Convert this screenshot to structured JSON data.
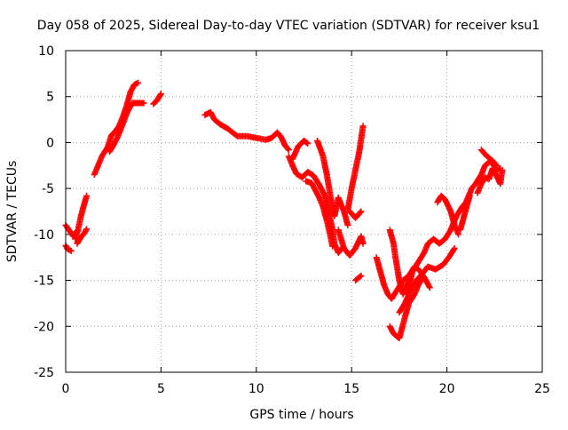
{
  "chart_data": {
    "type": "scatter",
    "title": "Day 058 of 2025, Sidereal Day-to-day VTEC variation (SDTVAR) for receiver ksu1",
    "xlabel": "GPS time / hours",
    "ylabel": "SDTVAR / TECUs",
    "xlim": [
      0,
      25
    ],
    "ylim": [
      -25,
      10
    ],
    "xticks": [
      0,
      5,
      10,
      15,
      20,
      25
    ],
    "yticks": [
      -25,
      -20,
      -15,
      -10,
      -5,
      0,
      5,
      10
    ],
    "grid": true,
    "marker": "plus",
    "color": "#ff0000",
    "series": [
      {
        "name": "ksu1",
        "tracks": [
          [
            [
              0.0,
              -11.2
            ],
            [
              0.1,
              -11.6
            ],
            [
              0.3,
              -11.8
            ]
          ],
          [
            [
              0.0,
              -9.0
            ],
            [
              0.2,
              -9.6
            ],
            [
              0.4,
              -10.2
            ],
            [
              0.6,
              -9.6
            ]
          ],
          [
            [
              0.5,
              -10.5
            ],
            [
              0.65,
              -9.5
            ],
            [
              0.8,
              -8.0
            ],
            [
              1.0,
              -6.5
            ],
            [
              1.1,
              -5.8
            ]
          ],
          [
            [
              0.6,
              -11.0
            ],
            [
              0.8,
              -10.3
            ],
            [
              1.0,
              -9.8
            ],
            [
              1.1,
              -9.4
            ]
          ],
          [
            [
              1.5,
              -3.5
            ],
            [
              1.7,
              -2.5
            ],
            [
              1.9,
              -1.5
            ],
            [
              2.2,
              -0.5
            ],
            [
              2.4,
              0.8
            ],
            [
              2.6,
              1.2
            ],
            [
              2.8,
              1.8
            ],
            [
              3.0,
              2.8
            ],
            [
              3.2,
              4.0
            ],
            [
              3.4,
              5.5
            ],
            [
              3.6,
              6.3
            ],
            [
              3.8,
              6.5
            ]
          ],
          [
            [
              2.3,
              -1.0
            ],
            [
              2.5,
              -0.3
            ],
            [
              2.7,
              0.5
            ],
            [
              2.9,
              1.5
            ],
            [
              3.1,
              2.6
            ],
            [
              3.3,
              3.6
            ],
            [
              3.5,
              4.3
            ],
            [
              3.8,
              4.3
            ],
            [
              4.1,
              4.3
            ]
          ],
          [
            [
              4.6,
              4.2
            ],
            [
              4.8,
              4.6
            ],
            [
              5.0,
              5.3
            ]
          ],
          [
            [
              7.3,
              3.0
            ],
            [
              7.6,
              3.3
            ],
            [
              7.8,
              2.5
            ],
            [
              8.1,
              2.0
            ],
            [
              8.5,
              1.5
            ],
            [
              9.0,
              0.7
            ],
            [
              9.5,
              0.7
            ],
            [
              10.0,
              0.5
            ],
            [
              10.5,
              0.3
            ],
            [
              10.8,
              0.5
            ],
            [
              11.1,
              1.1
            ],
            [
              11.3,
              0.6
            ],
            [
              11.5,
              -0.3
            ],
            [
              11.7,
              -0.8
            ]
          ],
          [
            [
              11.7,
              -1.5
            ],
            [
              11.9,
              -2.5
            ],
            [
              12.1,
              -3.4
            ],
            [
              12.4,
              -3.8
            ],
            [
              12.7,
              -3.2
            ],
            [
              13.0,
              -3.6
            ],
            [
              13.3,
              -4.6
            ],
            [
              13.6,
              -5.8
            ],
            [
              13.8,
              -7.5
            ],
            [
              14.0,
              -9.5
            ],
            [
              14.1,
              -11.0
            ],
            [
              14.3,
              -12.0
            ],
            [
              14.5,
              -11.5
            ]
          ],
          [
            [
              11.9,
              -1.8
            ],
            [
              12.2,
              -0.4
            ],
            [
              12.5,
              0.2
            ],
            [
              12.7,
              -0.1
            ]
          ],
          [
            [
              12.6,
              -4.2
            ],
            [
              12.9,
              -4.4
            ],
            [
              13.1,
              -5.2
            ],
            [
              13.3,
              -6.0
            ],
            [
              13.5,
              -7.0
            ],
            [
              13.7,
              -8.5
            ],
            [
              13.9,
              -10.3
            ],
            [
              14.0,
              -11.3
            ]
          ],
          [
            [
              13.2,
              0.2
            ],
            [
              13.5,
              -1.5
            ],
            [
              13.7,
              -3.5
            ],
            [
              13.9,
              -6.0
            ],
            [
              14.1,
              -8.0
            ],
            [
              14.3,
              -6.0
            ],
            [
              14.6,
              -7.5
            ],
            [
              14.8,
              -9.0
            ]
          ],
          [
            [
              14.3,
              -9.5
            ],
            [
              14.6,
              -11.5
            ],
            [
              14.9,
              -12.3
            ],
            [
              15.2,
              -11.5
            ],
            [
              15.5,
              -10.2
            ],
            [
              15.6,
              -11.0
            ]
          ],
          [
            [
              14.8,
              -7.3
            ],
            [
              15.0,
              -5.0
            ],
            [
              15.2,
              -3.0
            ],
            [
              15.4,
              -1.0
            ],
            [
              15.6,
              1.8
            ]
          ],
          [
            [
              14.9,
              -7.5
            ],
            [
              15.2,
              -8.2
            ],
            [
              15.5,
              -7.5
            ]
          ],
          [
            [
              15.2,
              -15.0
            ],
            [
              15.5,
              -14.5
            ]
          ],
          [
            [
              16.3,
              -12.5
            ],
            [
              16.5,
              -14.0
            ],
            [
              16.7,
              -15.5
            ],
            [
              16.9,
              -16.5
            ],
            [
              17.1,
              -17.0
            ],
            [
              17.4,
              -16.0
            ],
            [
              17.7,
              -15.0
            ],
            [
              18.0,
              -14.5
            ],
            [
              18.3,
              -13.5
            ],
            [
              18.6,
              -14.0
            ],
            [
              18.9,
              -15.0
            ],
            [
              19.1,
              -15.8
            ]
          ],
          [
            [
              17.0,
              -9.5
            ],
            [
              17.2,
              -11.0
            ],
            [
              17.3,
              -12.5
            ],
            [
              17.5,
              -15.0
            ],
            [
              17.7,
              -16.5
            ],
            [
              17.9,
              -15.5
            ],
            [
              18.1,
              -14.8
            ]
          ],
          [
            [
              17.0,
              -20.0
            ],
            [
              17.2,
              -20.8
            ],
            [
              17.5,
              -21.3
            ],
            [
              17.8,
              -19.0
            ],
            [
              18.0,
              -17.5
            ],
            [
              18.3,
              -16.5
            ],
            [
              18.5,
              -15.5
            ],
            [
              18.7,
              -14.8
            ]
          ],
          [
            [
              17.9,
              -16.5
            ],
            [
              18.2,
              -14.0
            ],
            [
              18.5,
              -13.0
            ],
            [
              18.8,
              -12.0
            ],
            [
              19.0,
              -11.0
            ],
            [
              19.3,
              -10.5
            ],
            [
              19.6,
              -11.0
            ],
            [
              19.9,
              -10.5
            ],
            [
              20.2,
              -9.5
            ],
            [
              20.5,
              -8.0
            ],
            [
              20.8,
              -7.0
            ],
            [
              21.0,
              -6.5
            ],
            [
              21.3,
              -5.0
            ],
            [
              21.5,
              -4.5
            ],
            [
              21.8,
              -3.5
            ],
            [
              22.0,
              -2.5
            ],
            [
              22.3,
              -2.0
            ],
            [
              22.6,
              -3.0
            ],
            [
              22.8,
              -2.8
            ]
          ],
          [
            [
              17.5,
              -18.5
            ],
            [
              17.8,
              -17.5
            ],
            [
              18.1,
              -16.0
            ],
            [
              18.4,
              -15.0
            ],
            [
              18.7,
              -14.3
            ],
            [
              19.0,
              -13.5
            ],
            [
              19.4,
              -13.8
            ],
            [
              19.8,
              -13.3
            ],
            [
              20.1,
              -12.5
            ],
            [
              20.4,
              -11.5
            ]
          ],
          [
            [
              19.5,
              -6.5
            ],
            [
              19.7,
              -5.8
            ],
            [
              19.9,
              -6.2
            ],
            [
              20.2,
              -7.5
            ],
            [
              20.4,
              -9.0
            ],
            [
              20.6,
              -10.0
            ]
          ],
          [
            [
              20.7,
              -9.5
            ],
            [
              20.9,
              -8.0
            ],
            [
              21.1,
              -6.5
            ],
            [
              21.2,
              -5.8
            ]
          ],
          [
            [
              21.6,
              -5.5
            ],
            [
              21.8,
              -4.5
            ],
            [
              22.0,
              -3.8
            ],
            [
              22.2,
              -4.0
            ],
            [
              22.4,
              -2.8
            ],
            [
              22.6,
              -3.6
            ],
            [
              22.8,
              -4.5
            ],
            [
              22.9,
              -3.0
            ]
          ],
          [
            [
              21.8,
              -0.8
            ],
            [
              22.1,
              -1.5
            ],
            [
              22.4,
              -2.0
            ],
            [
              22.6,
              -2.5
            ]
          ]
        ]
      }
    ]
  }
}
